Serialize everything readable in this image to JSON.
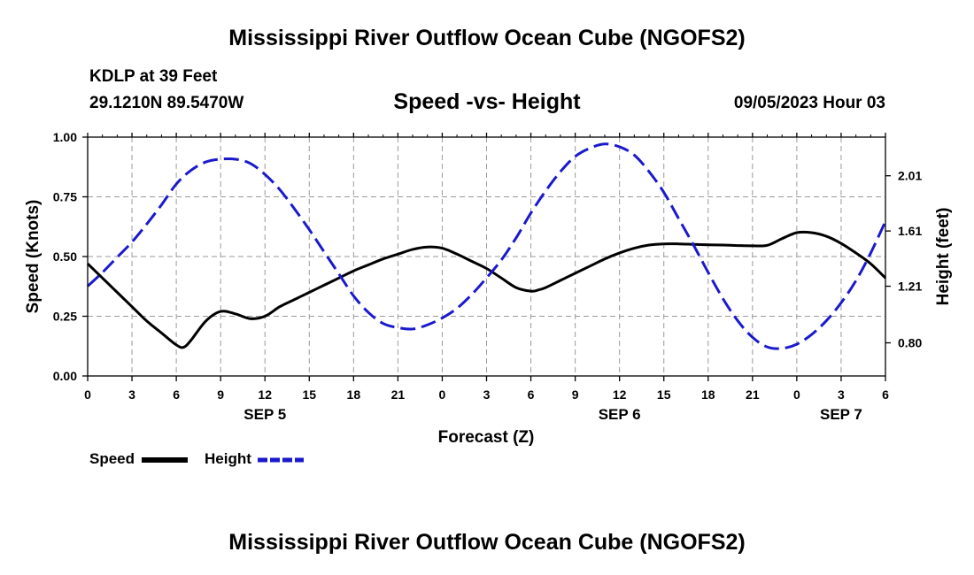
{
  "header": {
    "title": "Mississippi River Outflow Ocean Cube (NGOFS2)",
    "station": "KDLP at 39 Feet",
    "coordinates": "29.1210N  89.5470W",
    "subtitle": "Speed -vs- Height",
    "timestamp": "09/05/2023 Hour 03"
  },
  "footer": {
    "title": "Mississippi River Outflow Ocean Cube (NGOFS2)"
  },
  "legend": {
    "speed_label": "Speed",
    "height_label": "Height"
  },
  "colors": {
    "speed": "#000000",
    "height": "#1a1acc",
    "grid": "#9a9a9a"
  },
  "chart_data": {
    "type": "line",
    "xlabel": "Forecast (Z)",
    "ylabel_left": "Speed (Knots)",
    "ylabel_right": "Height (feet)",
    "x_unit": "hours since 09/05/2023 00Z",
    "xlim": [
      0,
      54
    ],
    "ylim_left": [
      0,
      1
    ],
    "ylim_right": [
      0.56,
      2.29
    ],
    "x_ticks": [
      0,
      3,
      6,
      9,
      12,
      15,
      18,
      21,
      24,
      27,
      30,
      33,
      36,
      39,
      42,
      45,
      48,
      51,
      54
    ],
    "x_tick_labels": [
      "0",
      "3",
      "6",
      "9",
      "12",
      "15",
      "18",
      "21",
      "0",
      "3",
      "6",
      "9",
      "12",
      "15",
      "18",
      "21",
      "0",
      "3",
      "6"
    ],
    "date_labels": [
      {
        "x": 12,
        "label": "SEP 5"
      },
      {
        "x": 36,
        "label": "SEP 6"
      },
      {
        "x": 51,
        "label": "SEP 7"
      }
    ],
    "y_left_ticks": [
      0,
      0.25,
      0.5,
      0.75,
      1.0
    ],
    "y_left_tick_labels": [
      "0.00",
      "0.25",
      "0.50",
      "0.75",
      "1.00"
    ],
    "y_right_ticks": [
      0.8,
      1.21,
      1.61,
      2.01
    ],
    "y_right_tick_labels": [
      "0.80",
      "1.21",
      "1.61",
      "2.01"
    ],
    "grid": true,
    "series": [
      {
        "name": "Speed",
        "axis": "left",
        "style": "solid",
        "x": [
          0,
          1,
          2,
          3,
          4,
          5,
          6,
          6.5,
          7,
          8,
          9,
          10,
          11,
          12,
          13,
          14,
          15,
          16,
          17,
          18,
          19,
          20,
          21,
          22,
          23,
          24,
          25,
          26,
          27,
          28,
          29,
          30,
          30.5,
          31,
          32,
          33,
          34,
          35,
          36,
          37,
          38,
          39,
          40,
          41,
          42,
          43,
          44,
          45,
          46,
          47,
          48,
          49,
          50,
          51,
          52,
          53,
          54
        ],
        "values": [
          0.47,
          0.41,
          0.35,
          0.29,
          0.23,
          0.18,
          0.13,
          0.12,
          0.15,
          0.23,
          0.27,
          0.26,
          0.24,
          0.25,
          0.29,
          0.32,
          0.35,
          0.38,
          0.41,
          0.44,
          0.465,
          0.49,
          0.51,
          0.53,
          0.54,
          0.535,
          0.51,
          0.48,
          0.45,
          0.41,
          0.37,
          0.355,
          0.36,
          0.37,
          0.4,
          0.43,
          0.46,
          0.49,
          0.515,
          0.535,
          0.548,
          0.553,
          0.553,
          0.551,
          0.549,
          0.548,
          0.546,
          0.545,
          0.547,
          0.575,
          0.6,
          0.6,
          0.585,
          0.555,
          0.515,
          0.47,
          0.41
        ]
      },
      {
        "name": "Height",
        "axis": "right",
        "style": "dashed",
        "x": [
          0,
          1,
          2,
          3,
          4,
          5,
          6,
          7,
          8,
          9,
          10,
          11,
          12,
          13,
          14,
          15,
          16,
          17,
          18,
          19,
          20,
          21,
          22,
          23,
          24,
          25,
          26,
          27,
          28,
          29,
          30,
          31,
          32,
          33,
          34,
          35,
          36,
          37,
          38,
          39,
          40,
          41,
          42,
          43,
          44,
          45,
          46,
          47,
          48,
          49,
          50,
          51,
          52,
          53,
          54
        ],
        "values": [
          1.21,
          1.31,
          1.42,
          1.53,
          1.66,
          1.8,
          1.95,
          2.05,
          2.11,
          2.13,
          2.13,
          2.1,
          2.02,
          1.91,
          1.77,
          1.62,
          1.46,
          1.3,
          1.14,
          1.02,
          0.94,
          0.91,
          0.9,
          0.93,
          0.98,
          1.05,
          1.15,
          1.27,
          1.4,
          1.56,
          1.74,
          1.9,
          2.04,
          2.15,
          2.21,
          2.24,
          2.22,
          2.16,
          2.04,
          1.89,
          1.7,
          1.51,
          1.31,
          1.12,
          0.96,
          0.84,
          0.77,
          0.76,
          0.79,
          0.86,
          0.96,
          1.09,
          1.25,
          1.45,
          1.68
        ]
      }
    ]
  }
}
